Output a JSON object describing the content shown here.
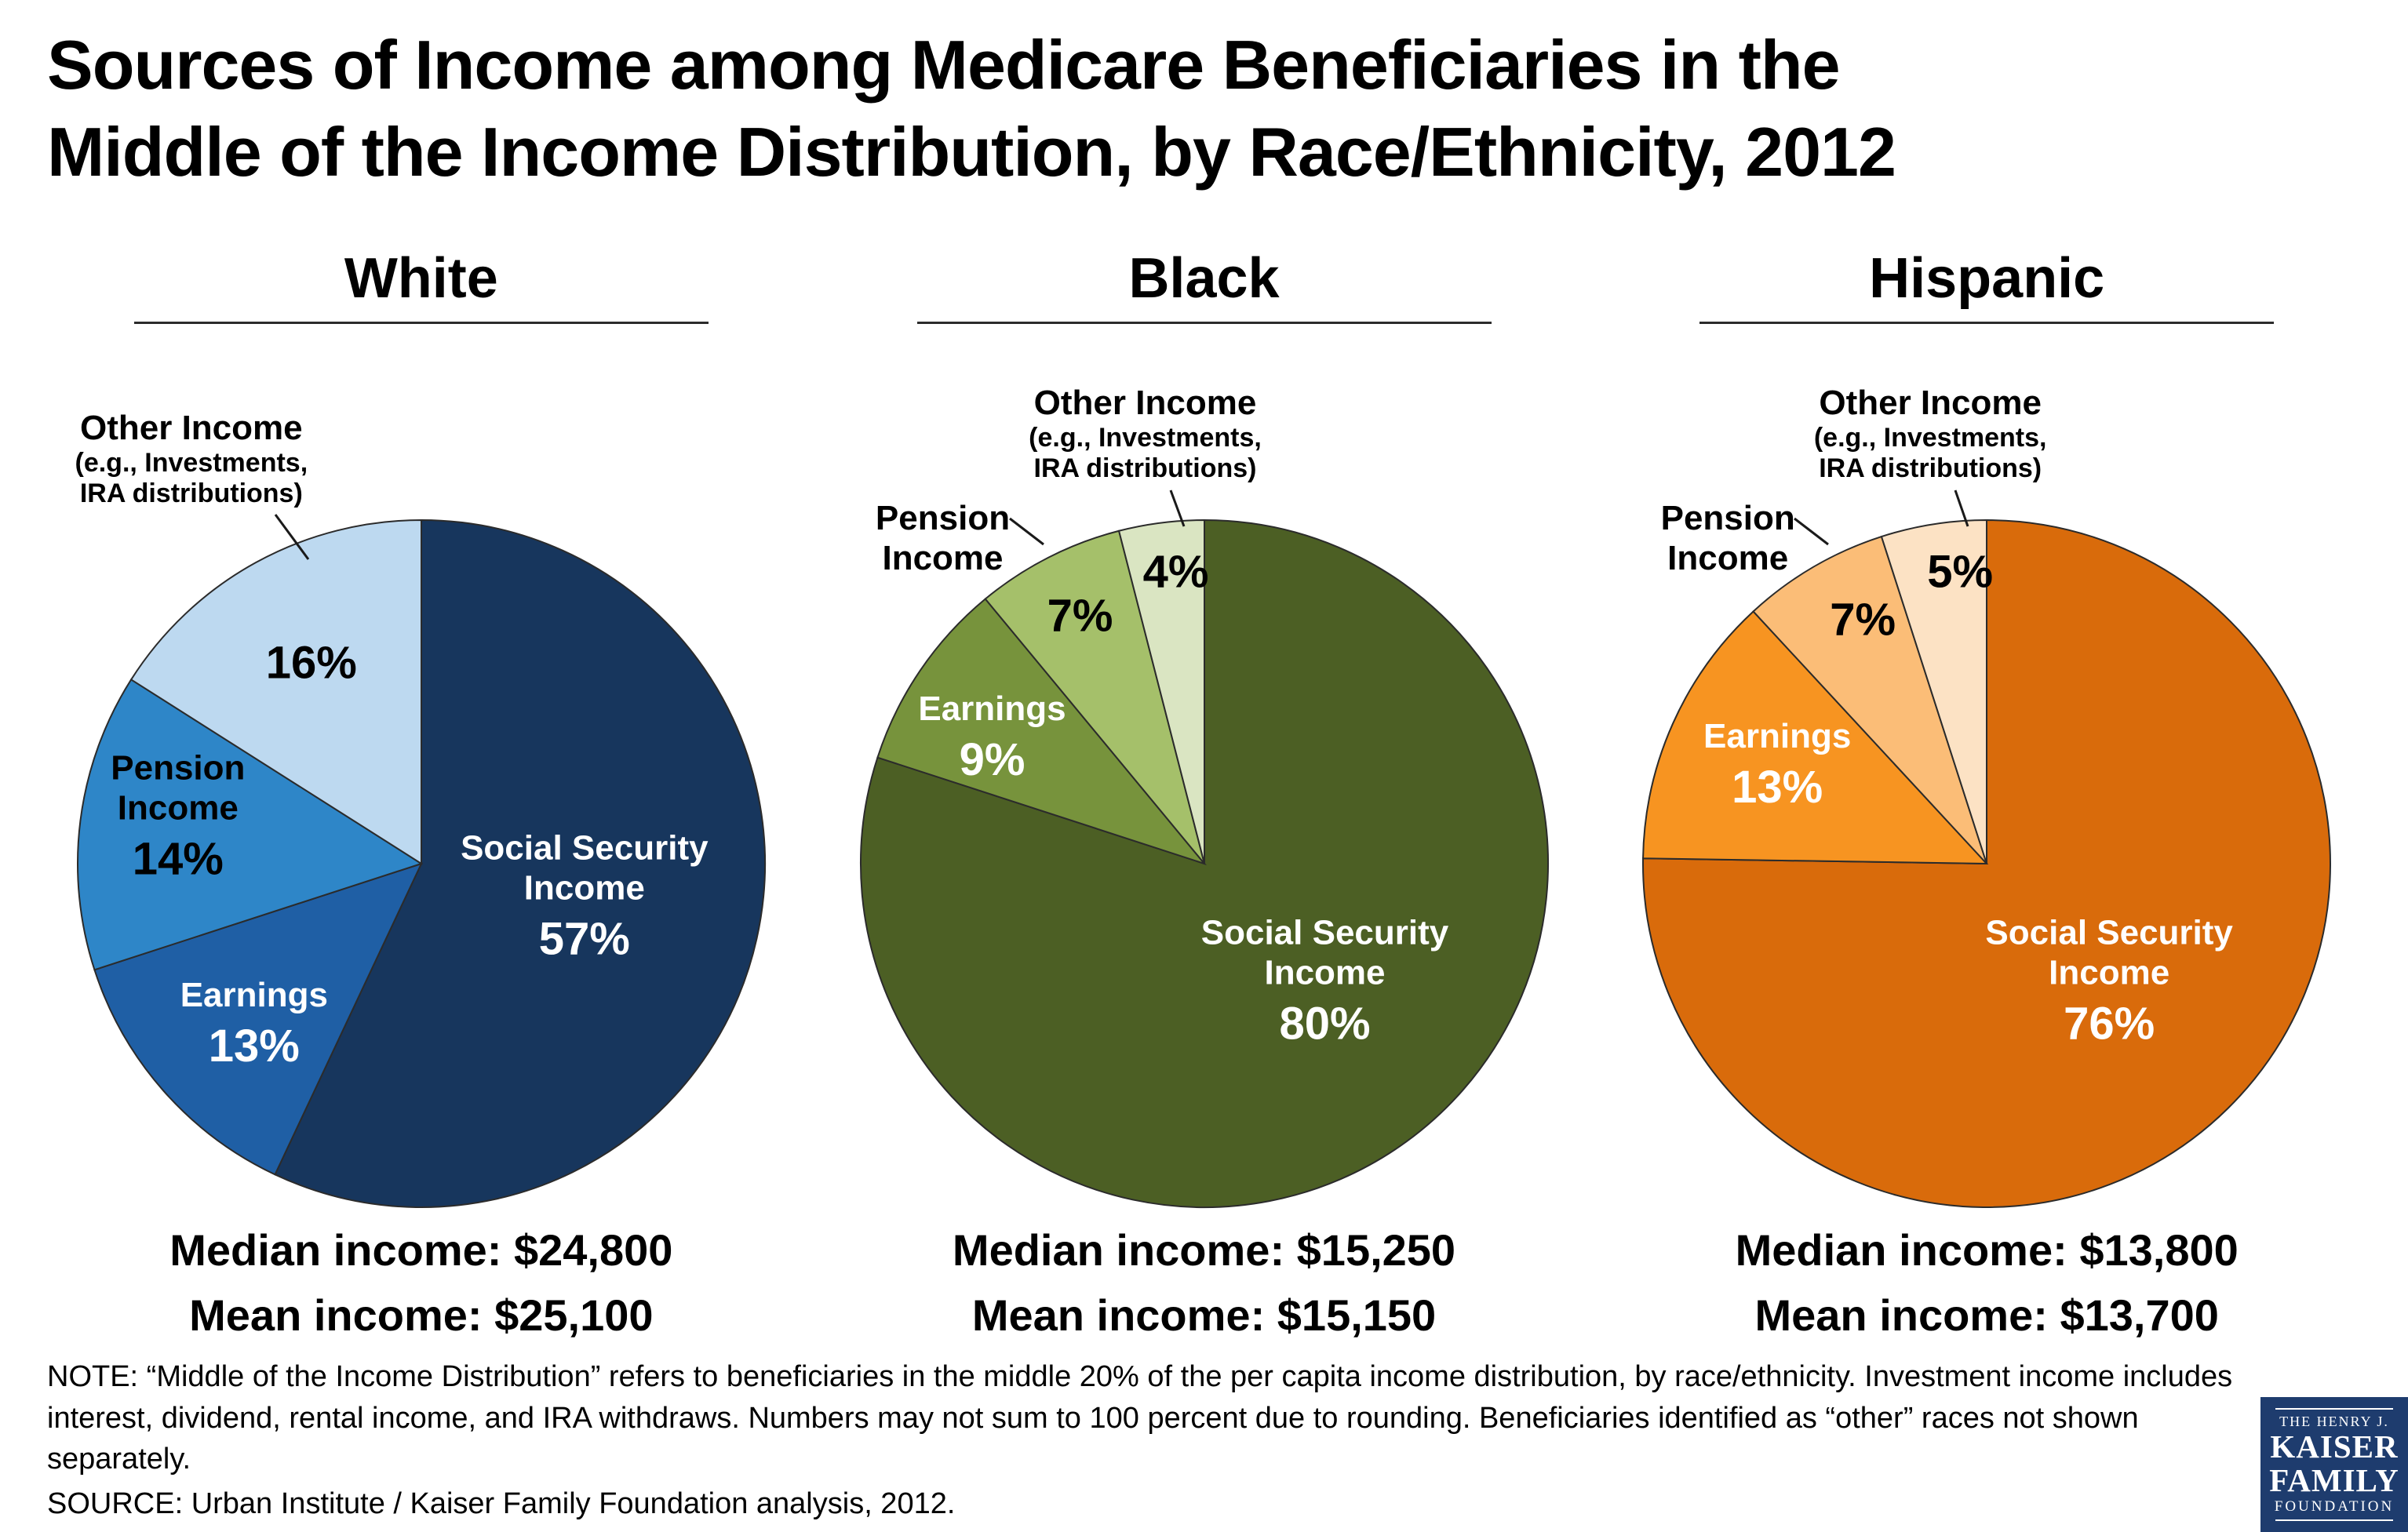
{
  "header": {
    "title_line1": "Sources of Income among Medicare Beneficiaries in the",
    "title_line2": "Middle of the Income Distribution, by Race/Ethnicity, 2012"
  },
  "shared_labels": {
    "other_title": "Other Income",
    "other_sub1": "(e.g., Investments,",
    "other_sub2": "IRA distributions)",
    "pension_line1": "Pension",
    "pension_line2": "Income",
    "earnings": "Earnings",
    "ss_line1": "Social Security",
    "ss_line2": "Income"
  },
  "chart_data": [
    {
      "type": "pie",
      "group": "White",
      "slice_order": "clockwise from 12 o'clock",
      "slices": [
        {
          "name": "Social Security Income",
          "value": 57,
          "pct_label": "57%",
          "color": "#17365D",
          "text_color": "#ffffff"
        },
        {
          "name": "Earnings",
          "value": 13,
          "pct_label": "13%",
          "color": "#1F5FA5",
          "text_color": "#ffffff"
        },
        {
          "name": "Pension Income",
          "value": 14,
          "pct_label": "14%",
          "color": "#2E86C8",
          "text_color": "#000000"
        },
        {
          "name": "Other Income (e.g., Investments, IRA distributions)",
          "value": 16,
          "pct_label": "16%",
          "color": "#BDD9F0",
          "text_color": "#000000"
        }
      ],
      "median": "Median income: $24,800",
      "mean": "Mean income: $25,100"
    },
    {
      "type": "pie",
      "group": "Black",
      "slice_order": "clockwise from 12 o'clock",
      "slices": [
        {
          "name": "Social Security Income",
          "value": 80,
          "pct_label": "80%",
          "color": "#4C5F24",
          "text_color": "#ffffff"
        },
        {
          "name": "Earnings",
          "value": 9,
          "pct_label": "9%",
          "color": "#77933C",
          "text_color": "#ffffff"
        },
        {
          "name": "Pension Income",
          "value": 7,
          "pct_label": "7%",
          "color": "#A5C06A",
          "text_color": "#000000"
        },
        {
          "name": "Other Income (e.g., Investments, IRA distributions)",
          "value": 4,
          "pct_label": "4%",
          "color": "#DAE5C2",
          "text_color": "#000000"
        }
      ],
      "median": "Median income: $15,250",
      "mean": "Mean income: $15,150"
    },
    {
      "type": "pie",
      "group": "Hispanic",
      "slice_order": "clockwise from 12 o'clock",
      "slices": [
        {
          "name": "Social Security Income",
          "value": 76,
          "pct_label": "76%",
          "color": "#D96B0B",
          "text_color": "#ffffff"
        },
        {
          "name": "Earnings",
          "value": 13,
          "pct_label": "13%",
          "color": "#F79421",
          "text_color": "#ffffff"
        },
        {
          "name": "Pension Income",
          "value": 7,
          "pct_label": "7%",
          "color": "#FBBD77",
          "text_color": "#000000"
        },
        {
          "name": "Other Income (e.g., Investments, IRA distributions)",
          "value": 5,
          "pct_label": "5%",
          "color": "#FCE2C4",
          "text_color": "#000000"
        }
      ],
      "median": "Median income: $13,800",
      "mean": "Mean income: $13,700"
    }
  ],
  "footer": {
    "note": "NOTE: “Middle of the Income Distribution” refers to beneficiaries in the middle 20% of the per capita income distribution, by race/ethnicity. Investment income includes interest, dividend, rental income, and IRA withdraws. Numbers may not sum to 100 percent due to rounding. Beneficiaries identified as “other” races not shown separately.",
    "source": "SOURCE: Urban Institute / Kaiser Family Foundation analysis, 2012.",
    "logo": {
      "line1": "THE HENRY J.",
      "line2": "KAISER",
      "line3": "FAMILY",
      "line4": "FOUNDATION"
    }
  }
}
